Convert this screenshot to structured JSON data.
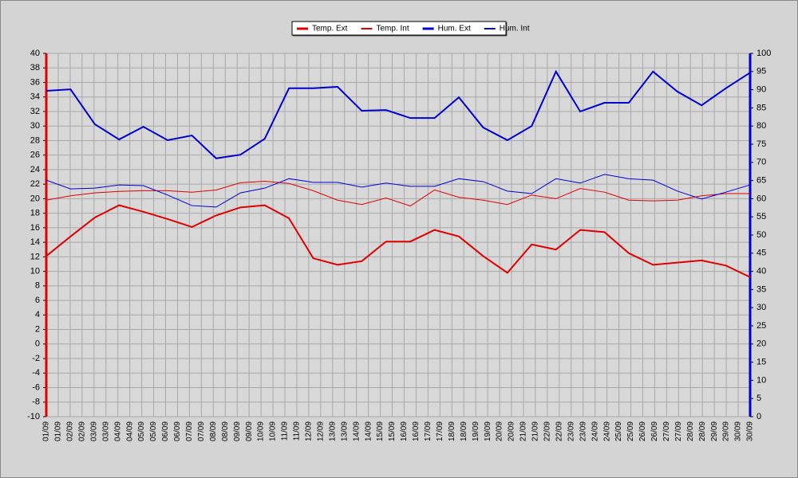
{
  "chart_data": {
    "type": "line",
    "xticks": [
      "01/09",
      "01/09",
      "02/09",
      "02/09",
      "03/09",
      "03/09",
      "04/09",
      "04/09",
      "05/09",
      "05/09",
      "06/09",
      "06/09",
      "07/09",
      "07/09",
      "08/09",
      "08/09",
      "09/09",
      "09/09",
      "10/09",
      "10/09",
      "11/09",
      "11/09",
      "12/09",
      "12/09",
      "13/09",
      "13/09",
      "14/09",
      "14/09",
      "15/09",
      "15/09",
      "16/09",
      "16/09",
      "17/09",
      "17/09",
      "18/09",
      "18/09",
      "19/09",
      "19/09",
      "20/09",
      "20/09",
      "21/09",
      "21/09",
      "22/09",
      "22/09",
      "23/09",
      "23/09",
      "24/09",
      "24/09",
      "25/09",
      "25/09",
      "26/09",
      "26/09",
      "27/09",
      "27/09",
      "28/09",
      "28/09",
      "29/09",
      "29/09",
      "30/09",
      "30/09"
    ],
    "series": [
      {
        "name": "Temp. Ext",
        "color": "#e00000",
        "width": 2,
        "values": [
          12.1,
          14.8,
          17.4,
          19.1,
          18.2,
          17.2,
          16.1,
          17.7,
          18.8,
          19.1,
          17.3,
          11.8,
          10.9,
          11.4,
          14.1,
          14.1,
          15.7,
          14.8,
          12.1,
          9.8,
          13.7,
          13.0,
          15.7,
          15.4,
          12.5,
          10.9,
          11.2,
          11.5,
          10.8,
          9.2
        ]
      },
      {
        "name": "Temp. Int",
        "color": "#e00000",
        "width": 1,
        "values": [
          19.8,
          20.4,
          20.8,
          21.0,
          21.1,
          21.1,
          20.9,
          21.2,
          22.2,
          22.4,
          22.1,
          21.1,
          19.8,
          19.2,
          20.1,
          19.0,
          21.2,
          20.2,
          19.8,
          19.2,
          20.5,
          20.0,
          21.4,
          20.9,
          19.8,
          19.7,
          19.8,
          20.4,
          20.7,
          20.7
        ]
      },
      {
        "name": "Hum. Ext",
        "color": "#0000d0",
        "width": 2,
        "axis": "y2",
        "values": [
          89.7,
          90.1,
          80.5,
          76.3,
          79.8,
          76.1,
          77.4,
          71.1,
          72.1,
          76.5,
          90.4,
          90.4,
          90.8,
          84.2,
          84.4,
          82.2,
          82.2,
          87.9,
          79.6,
          76.1,
          80.0,
          95.0,
          84.0,
          86.4,
          86.4,
          95.0,
          89.5,
          85.7,
          90.4,
          94.7
        ]
      },
      {
        "name": "Hum. Int",
        "color": "#0000d0",
        "width": 1,
        "axis": "y2",
        "values": [
          65.1,
          62.7,
          62.9,
          63.8,
          63.6,
          61.0,
          58.1,
          57.7,
          61.6,
          62.9,
          65.5,
          64.5,
          64.5,
          63.2,
          64.3,
          63.4,
          63.4,
          65.5,
          64.7,
          62.1,
          61.4,
          65.5,
          64.3,
          66.7,
          65.5,
          65.1,
          62.1,
          59.9,
          61.8,
          63.8
        ]
      }
    ],
    "ylim": [
      -10,
      40
    ],
    "yticks": [
      -10,
      -8,
      -6,
      -4,
      -2,
      0,
      2,
      4,
      6,
      8,
      10,
      12,
      14,
      16,
      18,
      20,
      22,
      24,
      26,
      28,
      30,
      32,
      34,
      36,
      38,
      40
    ],
    "y2lim": [
      0,
      100
    ],
    "y2ticks": [
      0,
      5,
      10,
      15,
      20,
      25,
      30,
      35,
      40,
      45,
      50,
      55,
      60,
      65,
      70,
      75,
      80,
      85,
      90,
      95,
      100
    ],
    "grid": true,
    "legend": "top"
  }
}
